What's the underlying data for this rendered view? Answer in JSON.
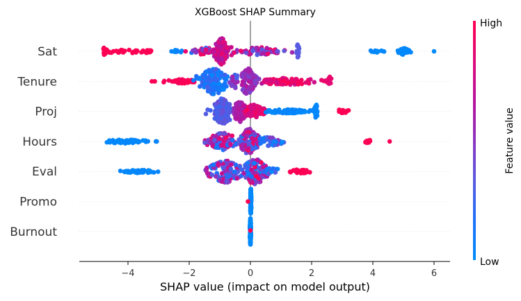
{
  "chart_data": {
    "type": "scatter",
    "subtype": "shap-beeswarm",
    "title": "XGBoost SHAP Summary",
    "xlabel": "SHAP value (impact on model output)",
    "ylabel": "",
    "xlim": [
      -5.6,
      6.55
    ],
    "xticks": [
      -4,
      -2,
      0,
      2,
      4,
      6
    ],
    "xtick_labels": [
      "−4",
      "−2",
      "0",
      "2",
      "4",
      "6"
    ],
    "grid": false,
    "zero_line": true,
    "colorbar": {
      "label": "Feature value",
      "high_label": "High",
      "low_label": "Low",
      "colors": [
        "#008bfb",
        "#1e6ffb",
        "#5a5ae0",
        "#8b35c0",
        "#b9119b",
        "#de0b7a",
        "#ff0052"
      ]
    },
    "features": [
      {
        "name": "Sat",
        "clusters": [
          {
            "min": -4.8,
            "max": -3.3,
            "center": -4.8,
            "spread": 0.05,
            "n": 55,
            "height": 0.35,
            "color": [
              0.98,
              1.0
            ]
          },
          {
            "min": -3.3,
            "max": -3.2,
            "center": -3.25,
            "spread": 0.05,
            "n": 6,
            "height": 0.1,
            "color": [
              0.98,
              1.0
            ]
          },
          {
            "min": -2.6,
            "max": -2.2,
            "center": -2.4,
            "spread": 0.1,
            "n": 10,
            "height": 0.1,
            "color": [
              0.0,
              0.05
            ]
          },
          {
            "min": -2.2,
            "max": -1.2,
            "center": -1.5,
            "spread": 0.2,
            "n": 35,
            "height": 0.3,
            "color": [
              0.1,
              0.95
            ]
          },
          {
            "min": -1.2,
            "max": -0.6,
            "center": -0.95,
            "spread": 0.12,
            "n": 110,
            "height": 1.0,
            "color": [
              0.6,
              0.9
            ]
          },
          {
            "min": -0.6,
            "max": 1.55,
            "center": 0.3,
            "spread": 0.4,
            "n": 60,
            "height": 0.3,
            "color": [
              0.2,
              0.95
            ]
          },
          {
            "min": 1.5,
            "max": 1.6,
            "center": 1.55,
            "spread": 0.02,
            "n": 12,
            "height": 0.55,
            "color": [
              0.3,
              0.35
            ]
          },
          {
            "min": 3.9,
            "max": 4.4,
            "center": 4.1,
            "spread": 0.1,
            "n": 12,
            "height": 0.1,
            "color": [
              0.0,
              0.03
            ]
          },
          {
            "min": 4.8,
            "max": 5.4,
            "center": 5.0,
            "spread": 0.1,
            "n": 30,
            "height": 0.25,
            "color": [
              0.0,
              0.03
            ]
          },
          {
            "min": 5.95,
            "max": 6.0,
            "center": 6.0,
            "spread": 0.01,
            "n": 1,
            "height": 0.0,
            "color": [
              0.0,
              0.01
            ]
          }
        ]
      },
      {
        "name": "Tenure",
        "clusters": [
          {
            "min": -3.25,
            "max": -3.05,
            "center": -3.15,
            "spread": 0.05,
            "n": 3,
            "height": 0.0,
            "color": [
              0.98,
              1.0
            ]
          },
          {
            "min": -2.95,
            "max": -1.8,
            "center": -2.2,
            "spread": 0.3,
            "n": 40,
            "height": 0.15,
            "color": [
              0.95,
              1.0
            ]
          },
          {
            "min": -1.9,
            "max": -0.7,
            "center": -1.2,
            "spread": 0.25,
            "n": 130,
            "height": 1.0,
            "color": [
              0.0,
              0.3
            ]
          },
          {
            "min": -0.7,
            "max": -0.3,
            "center": -0.5,
            "spread": 0.1,
            "n": 20,
            "height": 0.5,
            "color": [
              0.2,
              0.6
            ]
          },
          {
            "min": -0.3,
            "max": 0.45,
            "center": -0.1,
            "spread": 0.15,
            "n": 90,
            "height": 1.0,
            "color": [
              0.4,
              0.65
            ]
          },
          {
            "min": 0.4,
            "max": 2.6,
            "center": 1.2,
            "spread": 0.6,
            "n": 80,
            "height": 0.25,
            "color": [
              0.75,
              1.0
            ]
          },
          {
            "min": 2.5,
            "max": 2.65,
            "center": 2.6,
            "spread": 0.03,
            "n": 10,
            "height": 0.35,
            "color": [
              0.85,
              0.9
            ]
          }
        ]
      },
      {
        "name": "Proj",
        "clusters": [
          {
            "min": -1.5,
            "max": -0.6,
            "center": -0.9,
            "spread": 0.18,
            "n": 110,
            "height": 1.0,
            "color": [
              0.25,
              0.4
            ]
          },
          {
            "min": -0.6,
            "max": -0.1,
            "center": -0.35,
            "spread": 0.12,
            "n": 80,
            "height": 0.8,
            "color": [
              0.55,
              0.7
            ]
          },
          {
            "min": -0.2,
            "max": 0.5,
            "center": 0.1,
            "spread": 0.18,
            "n": 70,
            "height": 0.5,
            "color": [
              0.75,
              0.98
            ]
          },
          {
            "min": 0.5,
            "max": 2.1,
            "center": 1.2,
            "spread": 0.5,
            "n": 70,
            "height": 0.15,
            "color": [
              0.0,
              0.05
            ]
          },
          {
            "min": 2.05,
            "max": 2.25,
            "center": 2.15,
            "spread": 0.03,
            "n": 20,
            "height": 0.55,
            "color": [
              0.0,
              0.05
            ]
          },
          {
            "min": 2.85,
            "max": 3.4,
            "center": 3.0,
            "spread": 0.12,
            "n": 18,
            "height": 0.15,
            "color": [
              0.98,
              1.0
            ]
          }
        ]
      },
      {
        "name": "Hours",
        "clusters": [
          {
            "min": -4.8,
            "max": -3.25,
            "center": -4.1,
            "spread": 0.4,
            "n": 55,
            "height": 0.15,
            "color": [
              0.0,
              0.04
            ]
          },
          {
            "min": -3.2,
            "max": -3.0,
            "center": -3.1,
            "spread": 0.05,
            "n": 3,
            "height": 0.0,
            "color": [
              0.0,
              0.04
            ]
          },
          {
            "min": -1.7,
            "max": -0.4,
            "center": -0.9,
            "spread": 0.25,
            "n": 90,
            "height": 0.65,
            "color": [
              0.1,
              0.95
            ]
          },
          {
            "min": -0.4,
            "max": 0.35,
            "center": -0.05,
            "spread": 0.15,
            "n": 110,
            "height": 1.0,
            "color": [
              0.0,
              1.0
            ]
          },
          {
            "min": 0.3,
            "max": 1.1,
            "center": 0.6,
            "spread": 0.25,
            "n": 40,
            "height": 0.35,
            "color": [
              0.0,
              0.5
            ]
          },
          {
            "min": 3.7,
            "max": 3.95,
            "center": 3.85,
            "spread": 0.06,
            "n": 14,
            "height": 0.15,
            "color": [
              0.98,
              1.0
            ]
          },
          {
            "min": 4.5,
            "max": 4.6,
            "center": 4.55,
            "spread": 0.02,
            "n": 1,
            "height": 0.0,
            "color": [
              0.98,
              1.0
            ]
          }
        ]
      },
      {
        "name": "Eval",
        "clusters": [
          {
            "min": -4.3,
            "max": -2.9,
            "center": -3.6,
            "spread": 0.35,
            "n": 55,
            "height": 0.12,
            "color": [
              0.0,
              0.04
            ]
          },
          {
            "min": -1.6,
            "max": -0.3,
            "center": -0.8,
            "spread": 0.3,
            "n": 110,
            "height": 0.85,
            "color": [
              0.1,
              0.8
            ]
          },
          {
            "min": -0.3,
            "max": 0.55,
            "center": 0.15,
            "spread": 0.2,
            "n": 120,
            "height": 1.0,
            "color": [
              0.0,
              1.0
            ]
          },
          {
            "min": 0.5,
            "max": 1.0,
            "center": 0.7,
            "spread": 0.15,
            "n": 20,
            "height": 0.3,
            "color": [
              0.0,
              0.4
            ]
          },
          {
            "min": 1.25,
            "max": 2.1,
            "center": 1.6,
            "spread": 0.2,
            "n": 28,
            "height": 0.15,
            "color": [
              0.98,
              1.0
            ]
          }
        ]
      },
      {
        "name": "Promo",
        "clusters": [
          {
            "min": 0.0,
            "max": 0.03,
            "center": 0.01,
            "spread": 0.01,
            "n": 120,
            "height": 1.0,
            "color": [
              0.0,
              0.02
            ]
          },
          {
            "min": -0.1,
            "max": -0.07,
            "center": -0.08,
            "spread": 0.01,
            "n": 1,
            "height": 0.0,
            "color": [
              0.99,
              1.0
            ]
          }
        ]
      },
      {
        "name": "Burnout",
        "clusters": [
          {
            "min": -0.02,
            "max": 0.02,
            "center": 0.0,
            "spread": 0.01,
            "n": 120,
            "height": 1.0,
            "color": [
              0.0,
              0.02
            ]
          },
          {
            "min": 0.0,
            "max": 0.01,
            "center": 0.0,
            "spread": 0.005,
            "n": 1,
            "height": 0.3,
            "color": [
              0.99,
              1.0
            ]
          }
        ]
      }
    ]
  }
}
